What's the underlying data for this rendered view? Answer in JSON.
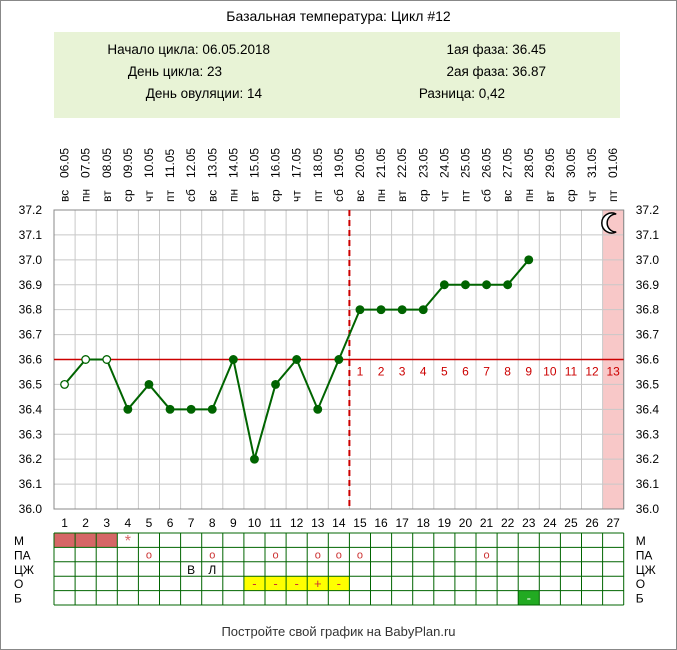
{
  "title": "Базальная температура: Цикл #12",
  "info": {
    "cycle_start": "Начало цикла: 06.05.2018",
    "cycle_day": "День цикла: 23",
    "ovulation_day": "День овуляции: 14",
    "phase1": "1ая фаза: 36.45",
    "phase2": "2ая фаза: 36.87",
    "difference": "Разница: 0,42"
  },
  "footer": "Постройте свой график на BabyPlan.ru",
  "chart_data": {
    "type": "line",
    "title": "Базальная температура: Цикл #12",
    "xlabel": "",
    "ylabel": "",
    "ylim": [
      36.0,
      37.2
    ],
    "y_ticks": [
      "36.0",
      "36.1",
      "36.2",
      "36.3",
      "36.4",
      "36.5",
      "36.6",
      "36.7",
      "36.8",
      "36.9",
      "37.0",
      "37.1",
      "37.2"
    ],
    "days": [
      "1",
      "2",
      "3",
      "4",
      "5",
      "6",
      "7",
      "8",
      "9",
      "10",
      "11",
      "12",
      "13",
      "14",
      "15",
      "16",
      "17",
      "18",
      "19",
      "20",
      "21",
      "22",
      "23",
      "24",
      "25",
      "26",
      "27"
    ],
    "dates": [
      "06.05",
      "07.05",
      "08.05",
      "09.05",
      "10.05",
      "11.05",
      "12.05",
      "13.05",
      "14.05",
      "15.05",
      "16.05",
      "17.05",
      "18.05",
      "19.05",
      "20.05",
      "21.05",
      "22.05",
      "23.05",
      "24.05",
      "25.05",
      "26.05",
      "27.05",
      "28.05",
      "29.05",
      "30.05",
      "31.05",
      "01.06"
    ],
    "weekdays": [
      "вс",
      "пн",
      "вт",
      "ср",
      "чт",
      "пт",
      "сб",
      "вс",
      "пн",
      "вт",
      "ср",
      "чт",
      "пт",
      "сб",
      "вс",
      "пн",
      "вт",
      "ср",
      "чт",
      "пт",
      "сб",
      "вс",
      "пн",
      "вт",
      "ср",
      "чт",
      "пт"
    ],
    "temperatures": [
      36.5,
      36.6,
      36.6,
      36.4,
      36.5,
      36.4,
      36.4,
      36.4,
      36.6,
      36.2,
      36.5,
      36.6,
      36.4,
      36.6,
      36.8,
      36.8,
      36.8,
      36.8,
      36.9,
      36.9,
      36.9,
      36.9,
      37.0
    ],
    "open_point_days": [
      1,
      2,
      3
    ],
    "coverline": 36.6,
    "ovulation_day": 14,
    "luteal_labels": [
      "1",
      "2",
      "3",
      "4",
      "5",
      "6",
      "7",
      "8",
      "9",
      "10",
      "11",
      "12",
      "13"
    ],
    "highlight_day": 27,
    "rows": [
      "М",
      "ПА",
      "ЦЖ",
      "О",
      "Б"
    ],
    "marks": {
      "menstruation_days": [
        1,
        2,
        3
      ],
      "menstruation_star_day": 4,
      "star": "*",
      "pa_days": [
        5,
        8,
        11,
        13,
        14,
        15,
        21
      ],
      "pa_symbol": "o",
      "cz": [
        {
          "day": 7,
          "text": "В"
        },
        {
          "day": 8,
          "text": "Л"
        }
      ],
      "o": [
        {
          "day": 10,
          "text": "-"
        },
        {
          "day": 11,
          "text": "-"
        },
        {
          "day": 12,
          "text": "-"
        },
        {
          "day": 13,
          "text": "+"
        },
        {
          "day": 14,
          "text": "-"
        }
      ],
      "b": [
        {
          "day": 23,
          "text": "-"
        }
      ]
    },
    "colors": {
      "line": "#006400",
      "coverline": "#cc0000",
      "ovulation": "#cc0000",
      "menstruation": "#d66666",
      "highlight": "#f8c8c8",
      "o_fill": "#ffff00",
      "b_fill": "#22aa22",
      "info_bg": "#e8f3d6"
    }
  }
}
